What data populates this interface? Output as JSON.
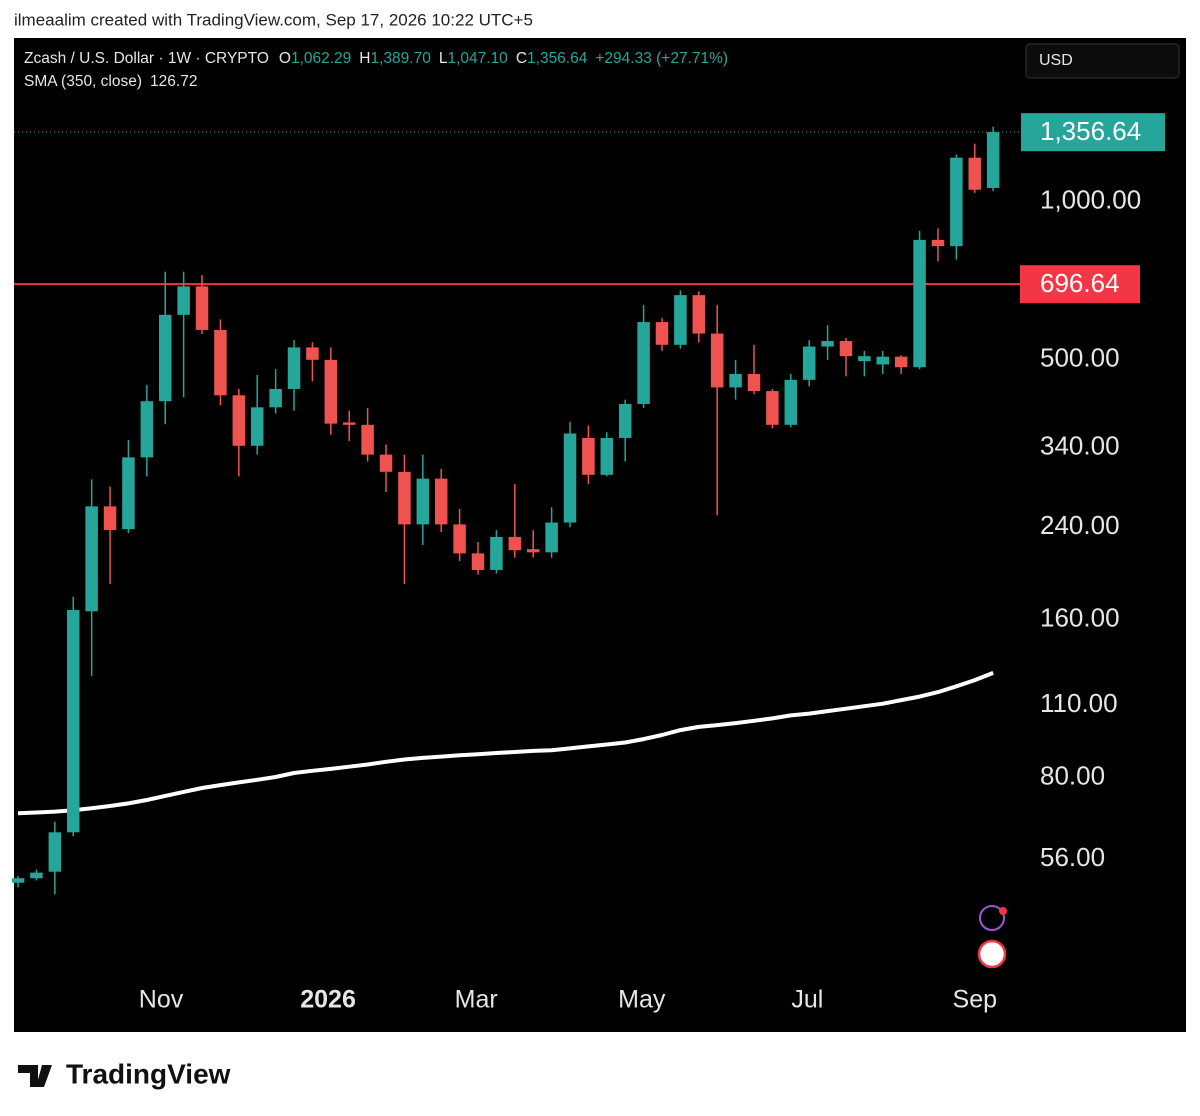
{
  "header": "ilmeaalim created with TradingView.com, Sep 17, 2026 10:22 UTC+5",
  "footer": "TradingView",
  "currency_button": "USD",
  "chart_data": {
    "type": "candlestick",
    "series": [
      {
        "name": "Zcash / U.S. Dollar · 1W · CRYPTO",
        "up_color": "#26a69a",
        "down_color": "#ef5350",
        "open": [
          50.5,
          51.5,
          53,
          63,
          166,
          263,
          238,
          326,
          417,
          609,
          690,
          570,
          428,
          343,
          406,
          440,
          528,
          500,
          380,
          376,
          330,
          306,
          243,
          297,
          243,
          214,
          199,
          230,
          218,
          215,
          245,
          355,
          302,
          355,
          412,
          590,
          534,
          664,
          561,
          443,
          470,
          436,
          376,
          458,
          530,
          543,
          497,
          490,
          507,
          484,
          846,
          823,
          1213,
          1062.29
        ],
        "high": [
          52,
          53.5,
          66,
          177,
          296,
          287,
          352,
          448,
          736,
          736,
          725,
          597,
          440,
          468,
          480,
          545,
          540,
          528,
          400,
          405,
          345,
          330,
          330,
          310,
          260,
          225,
          237,
          290,
          237,
          262,
          381,
          375,
          364,
          420,
          636,
          600,
          678,
          675,
          636,
          500,
          534,
          440,
          470,
          545,
          582,
          550,
          520,
          520,
          510,
          880,
          890,
          1230,
          1290,
          1389.7
        ],
        "low": [
          49.5,
          51,
          48,
          62,
          125,
          187,
          234,
          300,
          377,
          424,
          560,
          410,
          300,
          330,
          395,
          400,
          455,
          360,
          350,
          320,
          280,
          187,
          222,
          235,
          207,
          195,
          196,
          210,
          210,
          210,
          240,
          290,
          300,
          320,
          405,
          520,
          525,
          540,
          253,
          420,
          430,
          370,
          372,
          445,
          500,
          465,
          465,
          470,
          470,
          480,
          770,
          776,
          1040,
          1047.1
        ],
        "close": [
          51.5,
          52.8,
          63,
          167,
          263,
          237,
          326,
          417,
          609,
          690,
          570,
          428,
          343,
          406,
          440,
          528,
          500,
          378,
          376,
          330,
          306,
          243,
          297,
          243,
          214,
          199,
          230,
          217,
          215,
          245,
          362,
          302,
          355,
          412,
          590,
          534,
          664,
          561,
          443,
          470,
          436,
          376,
          458,
          530,
          543,
          508,
          508,
          507,
          484,
          846,
          823,
          1213,
          1054,
          1356.64
        ],
        "legend_keys": {
          "open": "O",
          "high": "H",
          "low": "L",
          "close": "C"
        },
        "last_labels": {
          "open": "1,062.29",
          "high": "1,389.70",
          "low": "1,047.10",
          "close": "1,356.64"
        },
        "change_label": "+294.33 (+27.71%)"
      }
    ],
    "sma": {
      "name": "SMA (350, close)",
      "color": "#ffffff",
      "last_label": "126.72",
      "values": [
        68.5,
        68.7,
        69.0,
        69.4,
        70.0,
        70.7,
        71.5,
        72.6,
        73.9,
        75.2,
        76.5,
        77.5,
        78.4,
        79.3,
        80.3,
        81.7,
        82.5,
        83.2,
        84.0,
        84.8,
        85.8,
        86.7,
        87.3,
        87.8,
        88.3,
        88.7,
        89.2,
        89.6,
        90.0,
        90.3,
        91.0,
        91.8,
        92.6,
        93.4,
        94.8,
        96.5,
        98.6,
        100.0,
        100.8,
        101.7,
        102.7,
        103.8,
        105.2,
        106.0,
        107.2,
        108.3,
        109.5,
        110.7,
        112.5,
        114.2,
        116.5,
        119.5,
        122.8,
        126.72
      ]
    },
    "hline": {
      "value": 696.64,
      "label": "696.64",
      "color": "#f23645"
    },
    "log_scale": true,
    "ylim": [
      33.7,
      2050
    ],
    "yticks": [
      {
        "value": 56,
        "label": "56.00"
      },
      {
        "value": 80,
        "label": "80.00"
      },
      {
        "value": 110,
        "label": "110.00"
      },
      {
        "value": 160,
        "label": "160.00"
      },
      {
        "value": 240,
        "label": "240.00"
      },
      {
        "value": 340,
        "label": "340.00"
      },
      {
        "value": 500,
        "label": "500.00"
      },
      {
        "value": 1000,
        "label": "1,000.00"
      }
    ],
    "xlim": [
      -0.22,
      54.35
    ],
    "xticks": [
      {
        "value": 7.77,
        "label": "Nov"
      },
      {
        "value": 16.85,
        "label": "2026"
      },
      {
        "value": 24.9,
        "label": "Mar"
      },
      {
        "value": 33.9,
        "label": "May"
      },
      {
        "value": 42.9,
        "label": "Jul"
      },
      {
        "value": 52.0,
        "label": "Sep"
      }
    ],
    "grid": false
  }
}
